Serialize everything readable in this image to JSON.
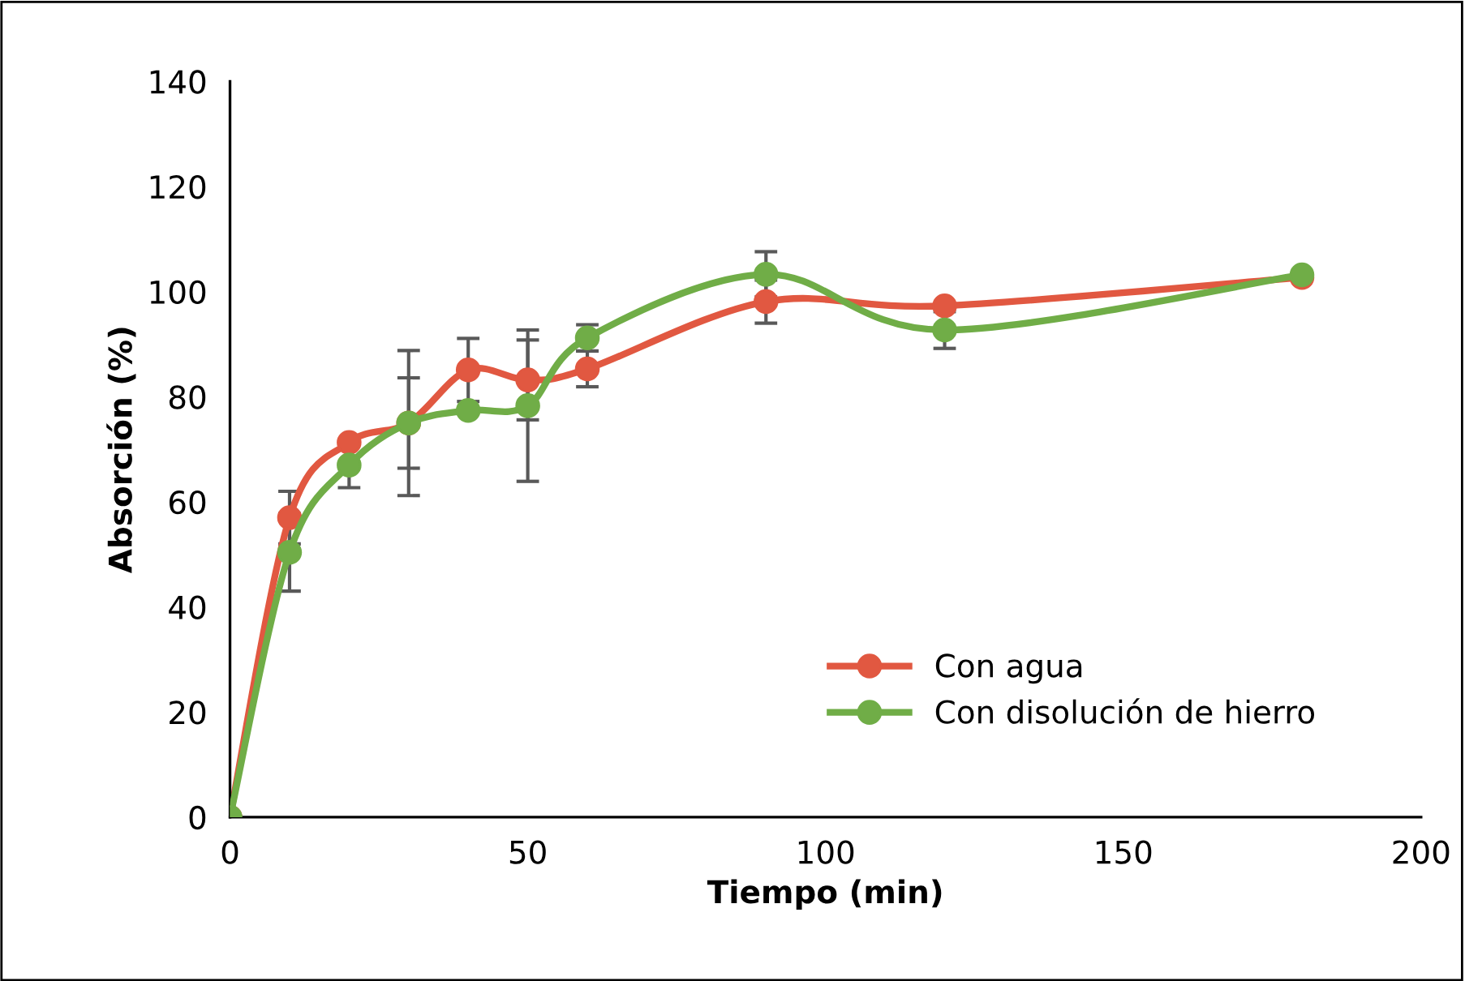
{
  "chart_data": {
    "type": "line",
    "xlabel": "Tiempo (min)",
    "ylabel": "Absorción (%)",
    "x": [
      0,
      10,
      20,
      30,
      40,
      50,
      60,
      90,
      120,
      180
    ],
    "series": [
      {
        "name": "Con agua",
        "color": "#e15841",
        "values": [
          0,
          57.0,
          71.3,
          75.0,
          85.1,
          83.2,
          85.3,
          98.1,
          97.3,
          102.7
        ],
        "errors": [
          null,
          5.0,
          null,
          8.6,
          6.0,
          7.6,
          3.4,
          4.1,
          null,
          null
        ]
      },
      {
        "name": "Con disolución de hierro",
        "color": "#70ad47",
        "values": [
          0,
          50.4,
          67.0,
          75.0,
          77.4,
          78.3,
          91.2,
          103.3,
          92.7,
          103.2
        ],
        "errors": [
          null,
          7.4,
          4.3,
          13.8,
          null,
          14.4,
          2.5,
          4.3,
          3.5,
          null
        ]
      }
    ],
    "xlim": [
      0,
      200
    ],
    "xticks": [
      0,
      50,
      100,
      150,
      200
    ],
    "ylim": [
      0,
      140
    ],
    "yticks": [
      0,
      20,
      40,
      60,
      80,
      100,
      120,
      140
    ],
    "marker": "circle",
    "line_style": "solid",
    "grid": false,
    "legend": "bottom right"
  }
}
